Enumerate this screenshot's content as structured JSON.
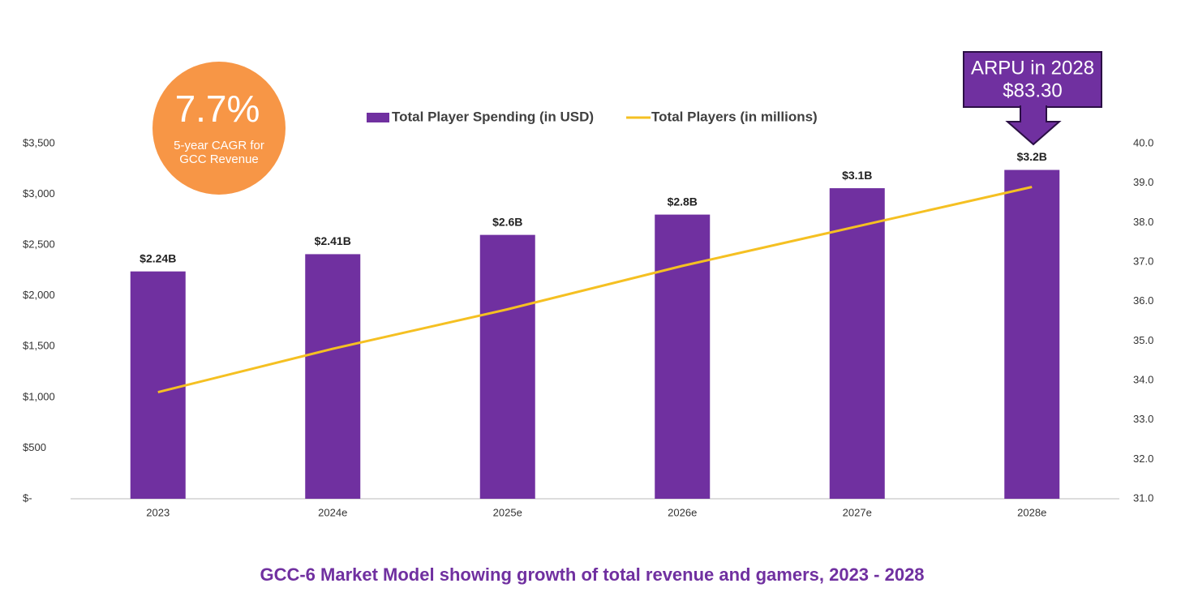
{
  "chart_data": {
    "type": "bar-line",
    "title": "GCC-6 Market Model showing growth of total revenue and gamers, 2023 - 2028",
    "categories": [
      "2023",
      "2024e",
      "2025e",
      "2026e",
      "2027e",
      "2028e"
    ],
    "series": [
      {
        "name": "Total Player Spending (in USD)",
        "type": "bar",
        "color": "#7030a0",
        "values": [
          2240,
          2410,
          2600,
          2800,
          3060,
          3240
        ],
        "value_labels": [
          "$2.24B",
          "$2.41B",
          "$2.6B",
          "$2.8B",
          "$3.1B",
          "$3.2B"
        ]
      },
      {
        "name": "Total Players (in millions)",
        "type": "line",
        "color": "#f5c022",
        "axis": "y2",
        "values": [
          33.7,
          34.8,
          35.8,
          36.9,
          37.9,
          38.9
        ]
      }
    ],
    "ylim": [
      0,
      3500
    ],
    "yticks": [
      {
        "value": 0,
        "label": "$-"
      },
      {
        "value": 500,
        "label": "$500"
      },
      {
        "value": 1000,
        "label": "$1,000"
      },
      {
        "value": 1500,
        "label": "$1,500"
      },
      {
        "value": 2000,
        "label": "$2,000"
      },
      {
        "value": 2500,
        "label": "$2,500"
      },
      {
        "value": 3000,
        "label": "$3,000"
      },
      {
        "value": 3500,
        "label": "$3,500"
      }
    ],
    "y2lim": [
      31,
      40
    ],
    "y2ticks": [
      {
        "value": 31,
        "label": "31.0"
      },
      {
        "value": 32,
        "label": "32.0"
      },
      {
        "value": 33,
        "label": "33.0"
      },
      {
        "value": 34,
        "label": "34.0"
      },
      {
        "value": 35,
        "label": "35.0"
      },
      {
        "value": 36,
        "label": "36.0"
      },
      {
        "value": 37,
        "label": "37.0"
      },
      {
        "value": 38,
        "label": "38.0"
      },
      {
        "value": 39,
        "label": "39.0"
      },
      {
        "value": 40,
        "label": "40.0"
      }
    ],
    "grid": false,
    "annotations": {
      "cagr": {
        "value": "7.7%",
        "text": [
          "5-year CAGR for",
          "GCC Revenue"
        ]
      },
      "arpu": [
        "ARPU in 2028",
        "$83.30"
      ]
    }
  }
}
